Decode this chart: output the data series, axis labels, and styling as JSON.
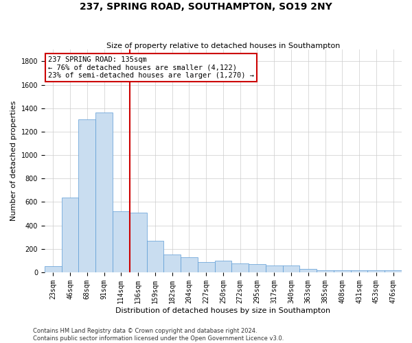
{
  "title": "237, SPRING ROAD, SOUTHAMPTON, SO19 2NY",
  "subtitle": "Size of property relative to detached houses in Southampton",
  "xlabel": "Distribution of detached houses by size in Southampton",
  "ylabel": "Number of detached properties",
  "footnote1": "Contains HM Land Registry data © Crown copyright and database right 2024.",
  "footnote2": "Contains public sector information licensed under the Open Government Licence v3.0.",
  "annotation_title": "237 SPRING ROAD: 135sqm",
  "annotation_line1": "← 76% of detached houses are smaller (4,122)",
  "annotation_line2": "23% of semi-detached houses are larger (1,270) →",
  "bar_color": "#c9ddf0",
  "bar_edge_color": "#5b9bd5",
  "vline_color": "#cc0000",
  "annotation_box_color": "#cc0000",
  "background_color": "#ffffff",
  "categories": [
    "23sqm",
    "46sqm",
    "68sqm",
    "91sqm",
    "114sqm",
    "136sqm",
    "159sqm",
    "182sqm",
    "204sqm",
    "227sqm",
    "250sqm",
    "272sqm",
    "295sqm",
    "317sqm",
    "340sqm",
    "363sqm",
    "385sqm",
    "408sqm",
    "431sqm",
    "453sqm",
    "476sqm"
  ],
  "values": [
    50,
    635,
    1305,
    1365,
    520,
    510,
    270,
    150,
    130,
    90,
    100,
    75,
    70,
    60,
    60,
    28,
    20,
    18,
    18,
    18,
    18
  ],
  "ylim": [
    0,
    1900
  ],
  "yticks": [
    0,
    200,
    400,
    600,
    800,
    1000,
    1200,
    1400,
    1600,
    1800
  ],
  "vline_x": 4.5,
  "grid_color": "#cccccc",
  "title_fontsize": 10,
  "subtitle_fontsize": 8,
  "ylabel_fontsize": 8,
  "xlabel_fontsize": 8,
  "tick_fontsize": 7,
  "footnote_fontsize": 6
}
